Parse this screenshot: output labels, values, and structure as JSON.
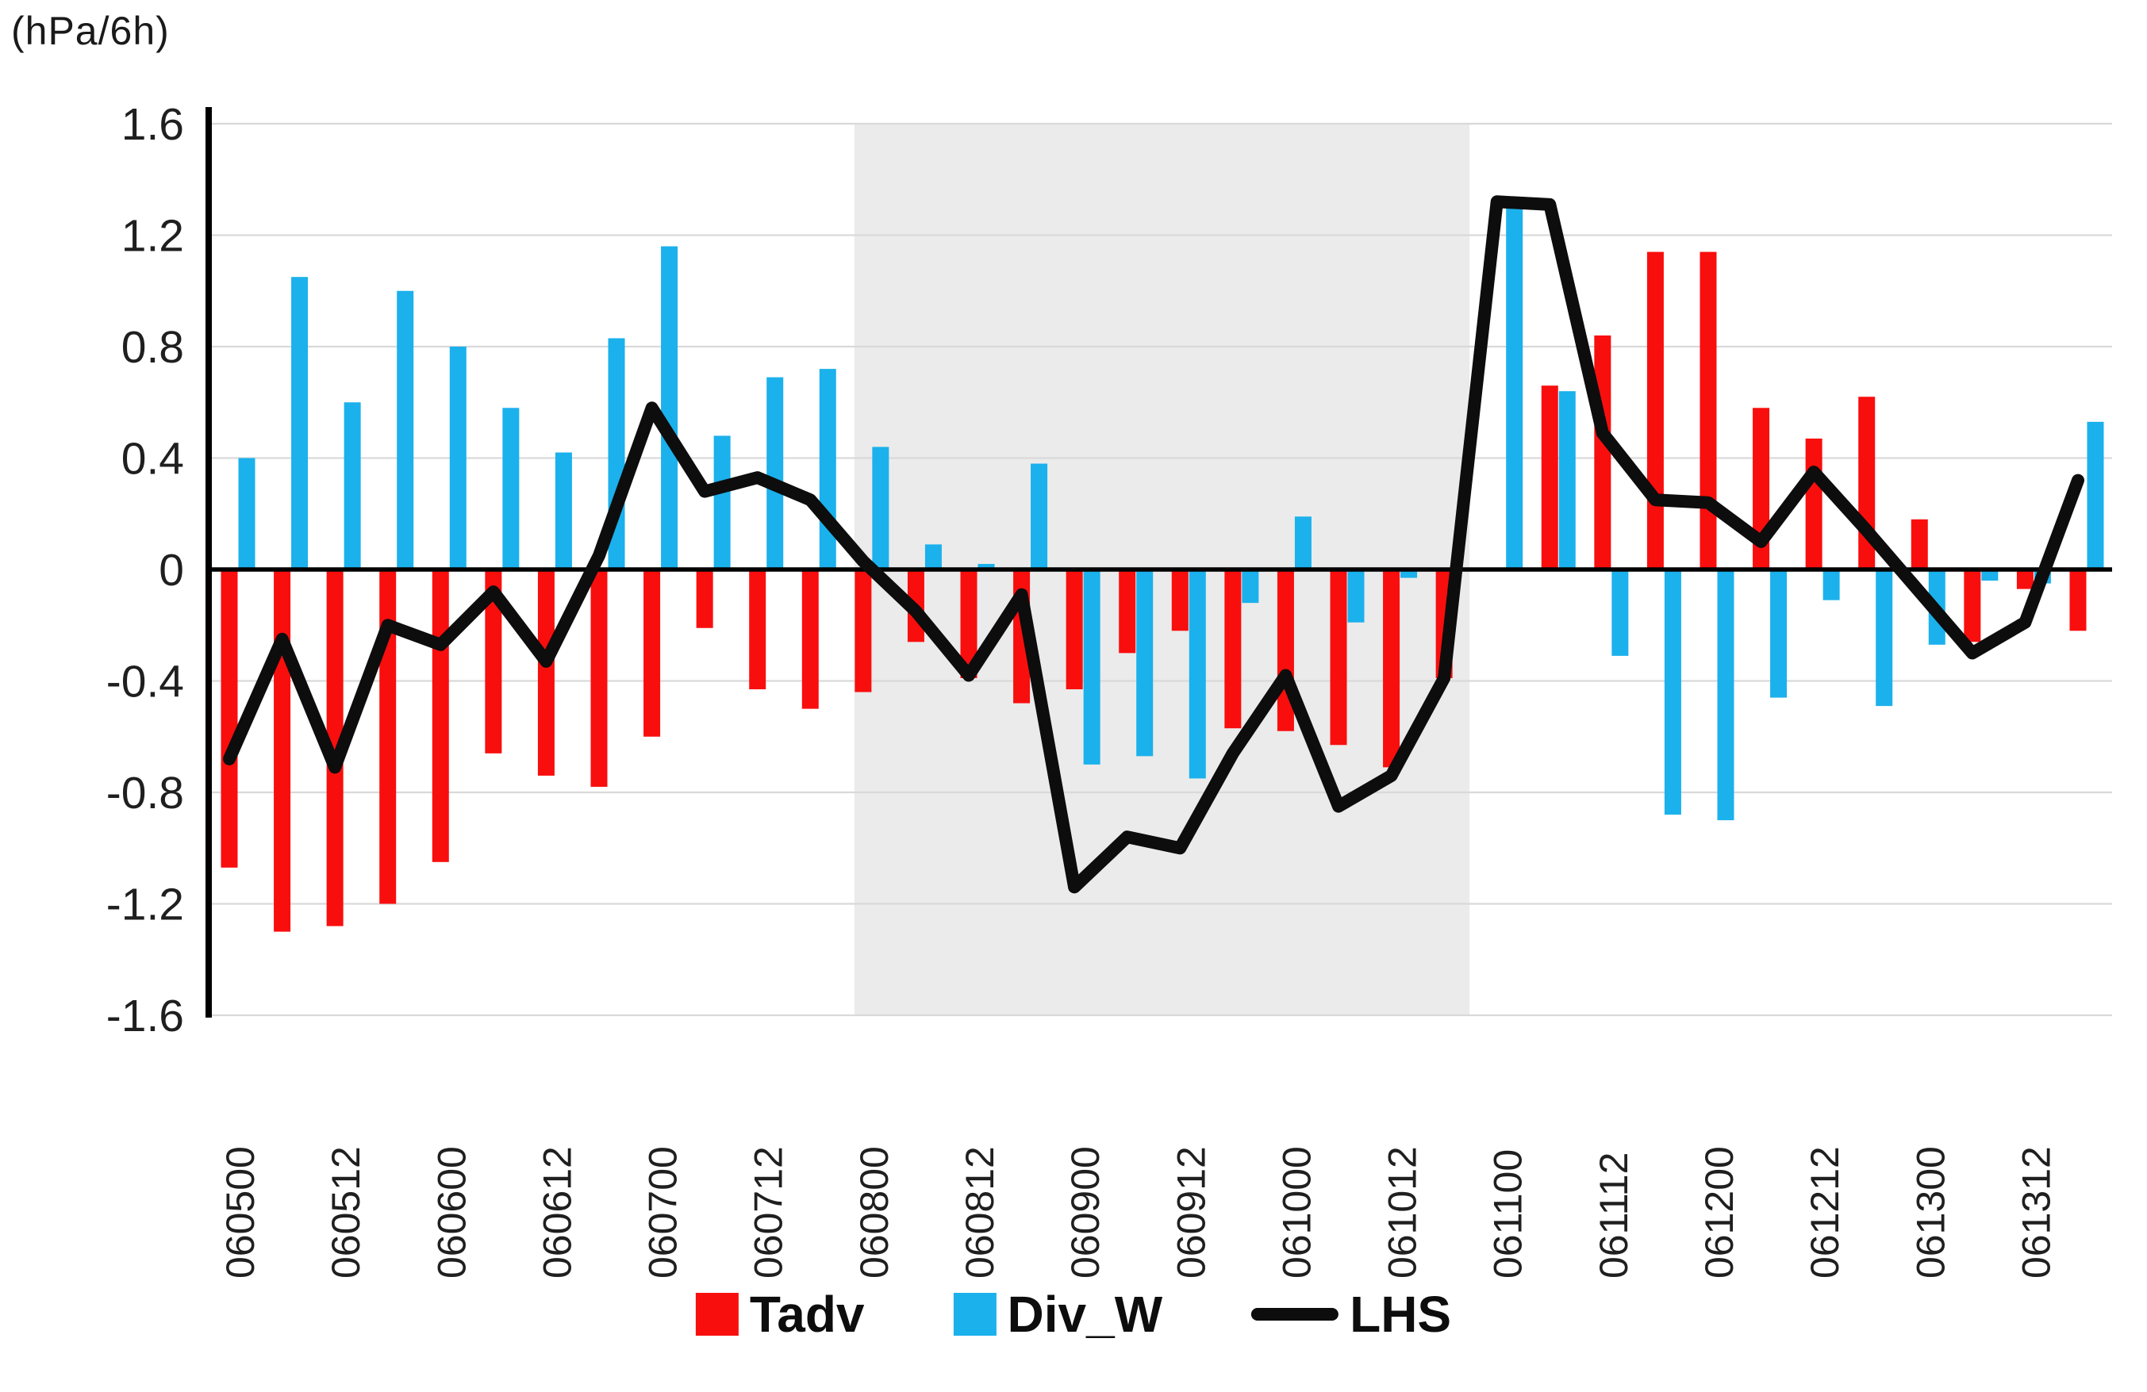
{
  "title_unit": "(hPa/6h)",
  "legend": {
    "items": [
      {
        "label": "Tadv",
        "swatch": "red-square",
        "color": "#f90e0e"
      },
      {
        "label": "Div_W",
        "swatch": "blue-square",
        "color": "#1bb1ec"
      },
      {
        "label": "LHS",
        "swatch": "black-line",
        "color": "#0d0d0d"
      }
    ]
  },
  "chart_data": {
    "type": "bar",
    "subtype": "clustered-bars-with-line-overlay",
    "title": "(hPa/6h)",
    "xlabel": "",
    "ylabel": "(hPa/6h)",
    "ylim": [
      -1.6,
      1.6
    ],
    "y_tick_step": 0.4,
    "y_ticks": [
      "1.6",
      "1.2",
      "0.8",
      "0.4",
      "0",
      "-0.4",
      "-0.8",
      "-1.2",
      "-1.6"
    ],
    "grid": "horizontal-only",
    "legend_position": "bottom-center",
    "x": [
      "060500",
      "060506",
      "060512",
      "060518",
      "060600",
      "060606",
      "060612",
      "060618",
      "060700",
      "060706",
      "060712",
      "060718",
      "060800",
      "060806",
      "060812",
      "060818",
      "060900",
      "060906",
      "060912",
      "060918",
      "061000",
      "061006",
      "061012",
      "061018",
      "061100",
      "061106",
      "061112",
      "061118",
      "061200",
      "061206",
      "061212",
      "061218",
      "061300",
      "061306",
      "061312",
      "061318"
    ],
    "x_tick_labels": [
      "060500",
      "060512",
      "060600",
      "060612",
      "060700",
      "060712",
      "060800",
      "060812",
      "060900",
      "060912",
      "061000",
      "061012",
      "061100",
      "061112",
      "061200",
      "061212",
      "061300",
      "061312"
    ],
    "x_labels_shown_every": 2,
    "x_label_rotation_deg": -90,
    "shaded_region": {
      "from_index": 12,
      "to_index": 23,
      "from_label": "060800",
      "to_label": "061018",
      "color": "#ebebeb"
    },
    "series": [
      {
        "name": "Tadv",
        "type": "bar",
        "color": "#f90e0e",
        "values": [
          -1.07,
          -1.3,
          -1.28,
          -1.2,
          -1.05,
          -0.66,
          -0.74,
          -0.78,
          -0.6,
          -0.21,
          -0.43,
          -0.5,
          -0.44,
          -0.26,
          -0.39,
          -0.48,
          -0.43,
          -0.3,
          -0.22,
          -0.57,
          -0.58,
          -0.63,
          -0.71,
          -0.39,
          0.0,
          0.66,
          0.84,
          1.14,
          1.14,
          0.58,
          0.47,
          0.62,
          0.18,
          -0.26,
          -0.07,
          -0.22
        ]
      },
      {
        "name": "Div_W",
        "type": "bar",
        "color": "#1bb1ec",
        "values": [
          0.4,
          1.05,
          0.6,
          1.0,
          0.8,
          0.58,
          0.42,
          0.83,
          1.16,
          0.48,
          0.69,
          0.72,
          0.44,
          0.09,
          0.02,
          0.38,
          -0.7,
          -0.67,
          -0.75,
          -0.12,
          0.19,
          -0.19,
          -0.03,
          0.0,
          1.3,
          0.64,
          -0.31,
          -0.88,
          -0.9,
          -0.46,
          -0.11,
          -0.49,
          -0.27,
          -0.04,
          -0.05,
          0.53
        ]
      },
      {
        "name": "LHS",
        "type": "line",
        "color": "#0d0d0d",
        "values": [
          -0.68,
          -0.25,
          -0.71,
          -0.2,
          -0.27,
          -0.08,
          -0.33,
          0.05,
          0.58,
          0.28,
          0.33,
          0.25,
          0.03,
          -0.15,
          -0.38,
          -0.09,
          -1.14,
          -0.96,
          -1.0,
          -0.66,
          -0.38,
          -0.85,
          -0.74,
          -0.39,
          1.32,
          1.31,
          0.49,
          0.25,
          0.24,
          0.1,
          0.35,
          0.14,
          -0.08,
          -0.3,
          -0.19,
          0.32
        ]
      }
    ],
    "colors": {
      "gridline": "#d9d9d9",
      "axis": "#000000",
      "zero_line": "#000000",
      "shading": "#ebebeb",
      "tick_text": "#1f1f1f"
    }
  }
}
